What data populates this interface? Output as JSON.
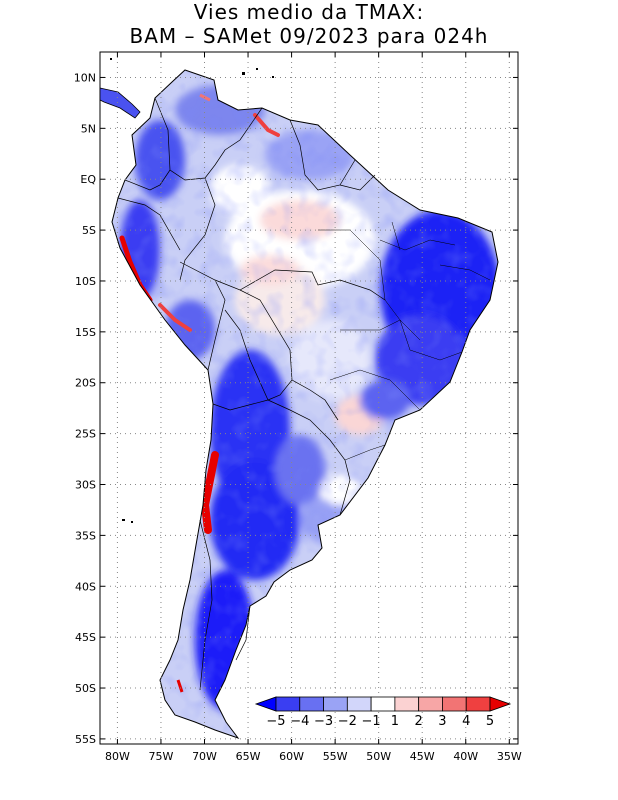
{
  "title": {
    "line1": "Vies medio da TMAX:",
    "line2": "BAM – SAMet 09/2023  para 024h"
  },
  "map": {
    "region": "South America",
    "lon_range": [
      -82,
      -34
    ],
    "lat_range": [
      -55.5,
      12.5
    ],
    "grid": true,
    "lon_ticks": [
      -80,
      -75,
      -70,
      -65,
      -60,
      -55,
      -50,
      -45,
      -40,
      -35
    ],
    "lon_labels": [
      "80W",
      "75W",
      "70W",
      "65W",
      "60W",
      "55W",
      "50W",
      "45W",
      "40W",
      "35W"
    ],
    "lat_ticks": [
      10,
      5,
      0,
      -5,
      -10,
      -15,
      -20,
      -25,
      -30,
      -35,
      -40,
      -45,
      -50,
      -55
    ],
    "lat_labels": [
      "10N",
      "5N",
      "EQ",
      "5S",
      "10S",
      "15S",
      "20S",
      "25S",
      "30S",
      "35S",
      "40S",
      "45S",
      "50S",
      "55S"
    ]
  },
  "colorbar": {
    "labels": [
      "−5",
      "−4",
      "−3",
      "−2",
      "−1",
      "1",
      "2",
      "3",
      "4",
      "5"
    ],
    "colors": [
      "#0000ff",
      "#3a3ef2",
      "#6870f2",
      "#9aa3f5",
      "#d2d6fa",
      "#ffffff",
      "#fbd2d2",
      "#f7a6a6",
      "#f27474",
      "#ef4040",
      "#e60000"
    ]
  }
}
